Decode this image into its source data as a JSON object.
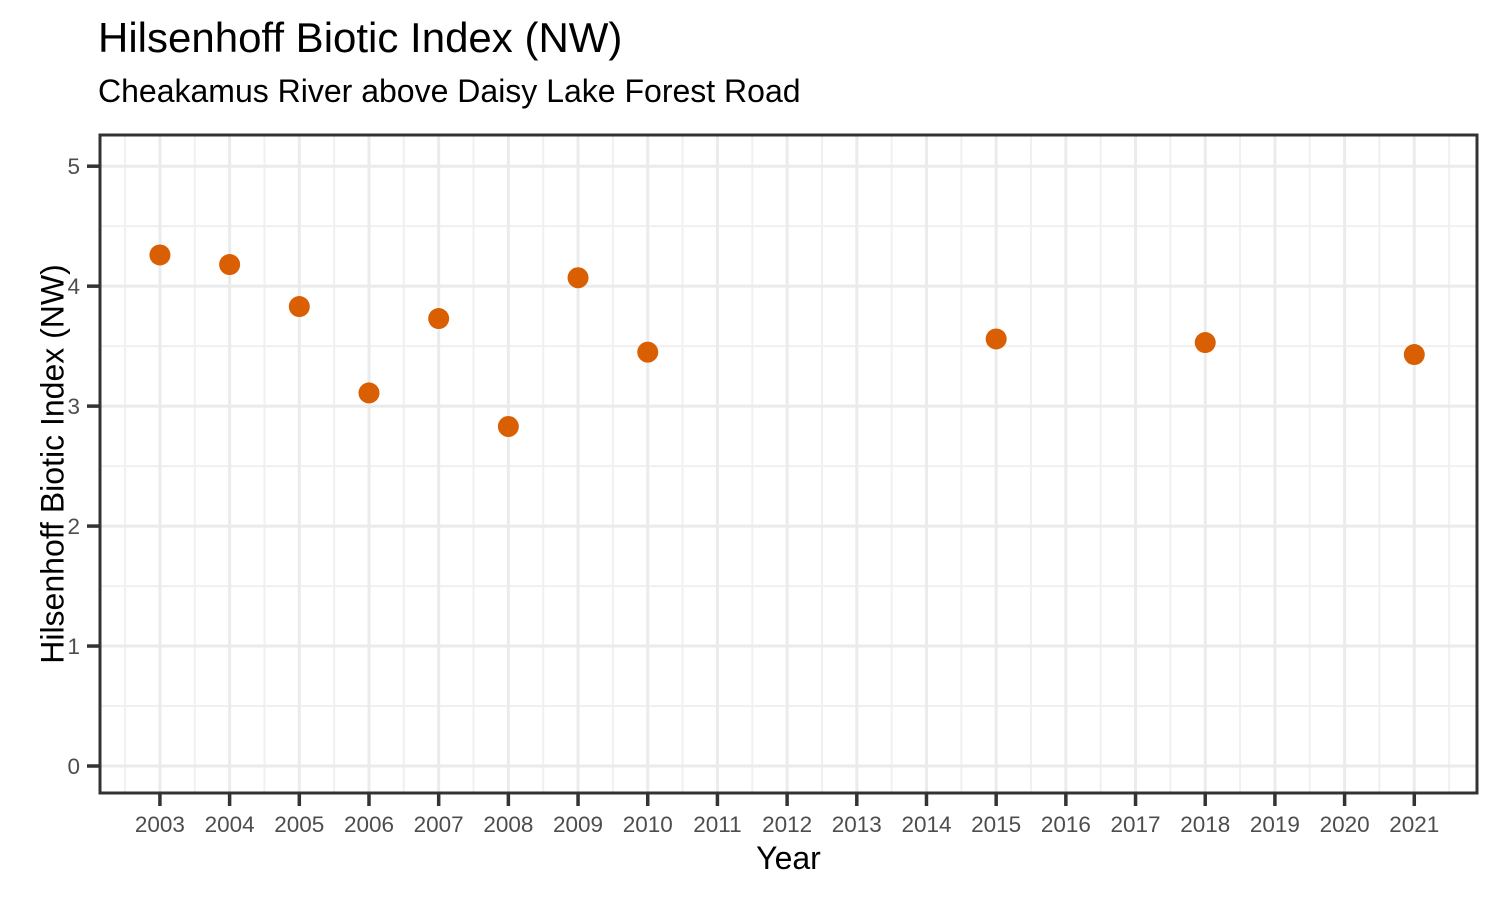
{
  "chart_data": {
    "type": "scatter",
    "title": "Hilsenhoff Biotic Index (NW)",
    "subtitle": "Cheakamus River above Daisy Lake Forest Road",
    "xlabel": "Year",
    "ylabel": "Hilsenhoff Biotic Index (NW)",
    "x_ticks": [
      2003,
      2004,
      2005,
      2006,
      2007,
      2008,
      2009,
      2010,
      2011,
      2012,
      2013,
      2014,
      2015,
      2016,
      2017,
      2018,
      2019,
      2020,
      2021
    ],
    "y_ticks": [
      0,
      1,
      2,
      3,
      4,
      5
    ],
    "xlim": [
      2002.14,
      2021.9
    ],
    "ylim": [
      -0.225,
      5.26
    ],
    "grid": "major and minor gridlines on both axes, minor at 0.5 steps",
    "legend": "none",
    "points": [
      {
        "year": 2003,
        "value": 4.26
      },
      {
        "year": 2004,
        "value": 4.18
      },
      {
        "year": 2005,
        "value": 3.83
      },
      {
        "year": 2006,
        "value": 3.11
      },
      {
        "year": 2007,
        "value": 3.73
      },
      {
        "year": 2008,
        "value": 2.83
      },
      {
        "year": 2009,
        "value": 4.07
      },
      {
        "year": 2010,
        "value": 3.45
      },
      {
        "year": 2015,
        "value": 3.56
      },
      {
        "year": 2018,
        "value": 3.53
      },
      {
        "year": 2021,
        "value": 3.43
      }
    ]
  },
  "colors": {
    "point": "#D95F02",
    "grid_major": "#EBEBEB",
    "grid_minor": "#F0F0F0",
    "panel_border": "#333333",
    "tick": "#333333",
    "tick_label": "#4D4D4D",
    "background": "#FFFFFF"
  }
}
